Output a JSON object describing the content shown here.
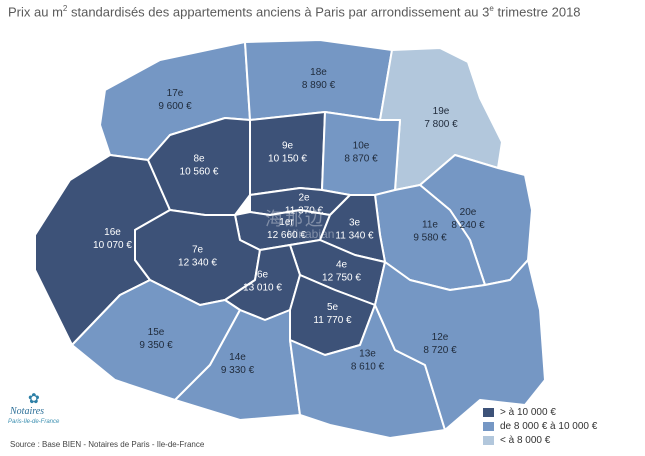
{
  "title": {
    "before": "Prix au m",
    "superscript": "2",
    "after": " standardisés des appartements anciens à Paris par arrondissement au 3",
    "superscript2": "e",
    "after2": " trimestre 2018"
  },
  "colors": {
    "high": "#3d5278",
    "mid": "#7597c4",
    "low": "#b2c7dc",
    "border": "#ffffff"
  },
  "arrondissements": [
    {
      "id": "1er",
      "price": "12 660 €",
      "class": "high"
    },
    {
      "id": "2e",
      "price": "11 370 €",
      "class": "high"
    },
    {
      "id": "3e",
      "price": "11 340 €",
      "class": "high"
    },
    {
      "id": "4e",
      "price": "12 750 €",
      "class": "high"
    },
    {
      "id": "5e",
      "price": "11 770 €",
      "class": "high"
    },
    {
      "id": "6e",
      "price": "13 010 €",
      "class": "high"
    },
    {
      "id": "7e",
      "price": "12 340 €",
      "class": "high"
    },
    {
      "id": "8e",
      "price": "10 560 €",
      "class": "high"
    },
    {
      "id": "9e",
      "price": "10 150 €",
      "class": "high"
    },
    {
      "id": "10e",
      "price": "8 870 €",
      "class": "mid"
    },
    {
      "id": "11e",
      "price": "9 580 €",
      "class": "mid"
    },
    {
      "id": "12e",
      "price": "8 720 €",
      "class": "mid"
    },
    {
      "id": "13e",
      "price": "8 610 €",
      "class": "mid"
    },
    {
      "id": "14e",
      "price": "9 330 €",
      "class": "mid"
    },
    {
      "id": "15e",
      "price": "9 350 €",
      "class": "mid"
    },
    {
      "id": "16e",
      "price": "10 070 €",
      "class": "high"
    },
    {
      "id": "17e",
      "price": "9 600 €",
      "class": "mid"
    },
    {
      "id": "18e",
      "price": "8 890 €",
      "class": "mid"
    },
    {
      "id": "19e",
      "price": "7 800 €",
      "class": "low"
    },
    {
      "id": "20e",
      "price": "8 240 €",
      "class": "mid"
    }
  ],
  "legend": [
    {
      "label": "> à 10 000 €",
      "class": "high"
    },
    {
      "label": "de 8 000 € à 10 000 €",
      "class": "mid"
    },
    {
      "label": "< à 8 000 €",
      "class": "low"
    }
  ],
  "source": "Source : Base BIEN - Notaires de Paris - Ile-de-France",
  "logo": {
    "name": "Notaires",
    "sub": "Paris-Ile-de-France"
  },
  "watermark": {
    "line1": "海那边",
    "line2": "Hinabian"
  }
}
